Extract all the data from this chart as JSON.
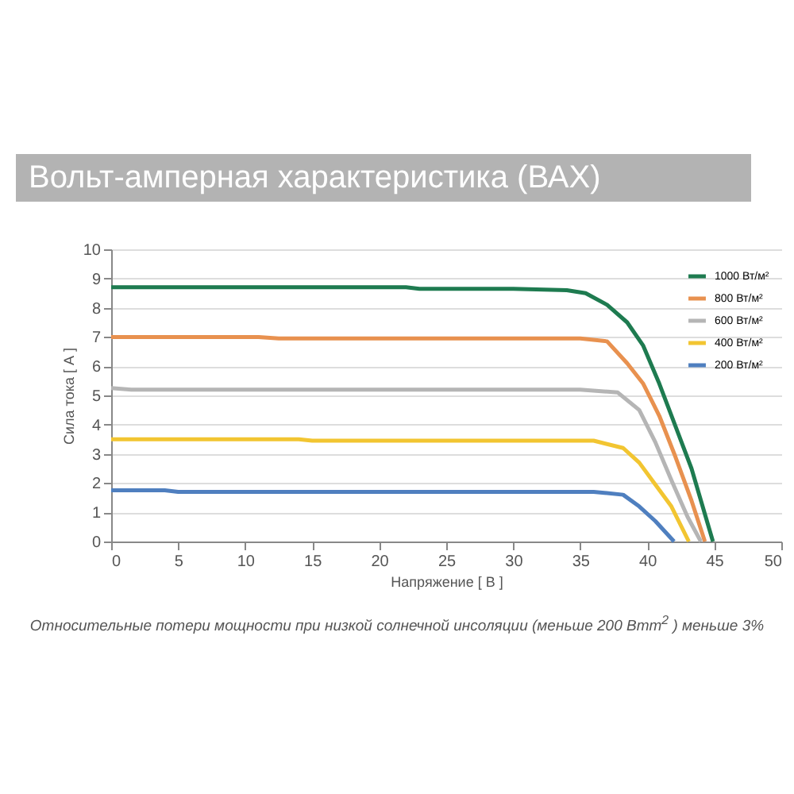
{
  "chart_data": {
    "type": "line",
    "title": "Вольт-амперная характеристика (ВАХ)",
    "xlabel": "Напряжение [ В ]",
    "ylabel": "Сила тока [ А ]",
    "annotations": [
      "Относительные потери мощности при низкой солнечной инсоляции (меньше 200 Втm$^{2}$ ) меньше 3%"
    ],
    "xlim": [
      0,
      50
    ],
    "xticks": [
      0,
      5,
      10,
      15,
      20,
      25,
      30,
      35,
      40,
      45,
      50
    ],
    "ylim": [
      0,
      10
    ],
    "yticks": [
      0,
      1,
      2,
      3,
      4,
      5,
      6,
      7,
      8,
      9,
      10
    ],
    "grid": "y",
    "legend": "top right",
    "marker": "none",
    "line_style": "solid",
    "series": [
      {
        "name": "1000 Вт/м²",
        "color": "#1e7b50",
        "x": [
          0,
          10,
          22,
          23,
          30,
          34,
          35.4,
          37,
          38.5,
          39.7,
          40.9,
          42.1,
          43.3,
          44.9
        ],
        "values": [
          8.7,
          8.7,
          8.7,
          8.65,
          8.65,
          8.6,
          8.5,
          8.1,
          7.5,
          6.7,
          5.4,
          3.95,
          2.5,
          0
        ]
      },
      {
        "name": "800 Вт/м²",
        "color": "#e8914f",
        "x": [
          0,
          11,
          12.5,
          25,
          33,
          35,
          37,
          38.5,
          39.7,
          40.9,
          42.1,
          43.3,
          44.3
        ],
        "values": [
          7,
          7,
          6.95,
          6.95,
          6.95,
          6.95,
          6.85,
          6.1,
          5.4,
          4.3,
          2.9,
          1.4,
          0
        ]
      },
      {
        "name": "600 Вт/м²",
        "color": "#b5b5b5",
        "x": [
          0,
          1.5,
          25,
          35,
          37.8,
          39.4,
          40.6,
          41.8,
          43,
          44
        ],
        "values": [
          5.25,
          5.2,
          5.2,
          5.2,
          5.1,
          4.5,
          3.4,
          2.1,
          0.85,
          0
        ]
      },
      {
        "name": "400 Вт/м²",
        "color": "#f2c531",
        "x": [
          0,
          14,
          15,
          30,
          36,
          38.2,
          39.4,
          40.6,
          41.8,
          43.1
        ],
        "values": [
          3.5,
          3.5,
          3.45,
          3.45,
          3.45,
          3.2,
          2.7,
          1.95,
          1.2,
          0
        ]
      },
      {
        "name": "200 Вт/м²",
        "color": "#4f7fbf",
        "x": [
          0,
          4,
          5,
          30,
          36,
          38.2,
          39.4,
          40.6,
          42
        ],
        "values": [
          1.75,
          1.75,
          1.7,
          1.7,
          1.7,
          1.6,
          1.2,
          0.7,
          0
        ]
      }
    ]
  }
}
